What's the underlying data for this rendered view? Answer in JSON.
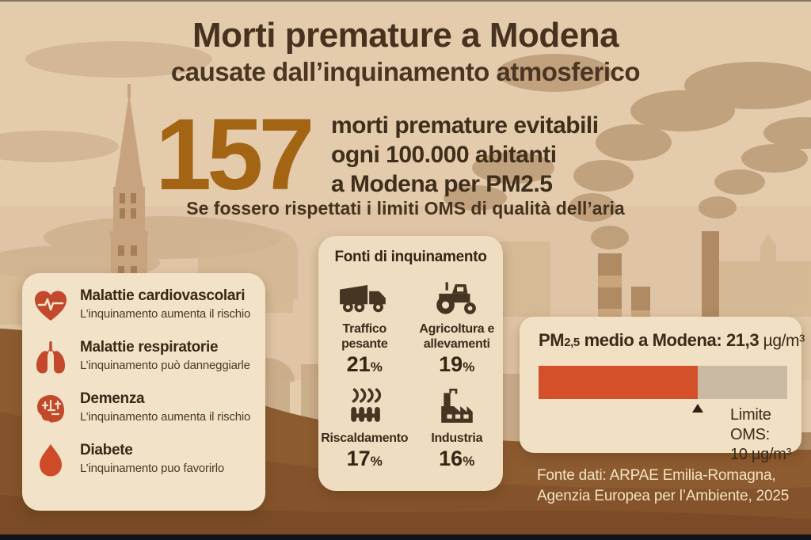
{
  "header": {
    "title_line1": "Morti premature a Modena",
    "title_line2": "causate dall’inquinamento atmosferico"
  },
  "stat": {
    "number": "157",
    "line1": "morti premature evitabili",
    "line2": "ogni 100.000 abitanti",
    "line3": "a Modena per PM2.5",
    "note": "Se fossero rispettati i limiti OMS di qualità dell’aria"
  },
  "diseases": {
    "items": [
      {
        "icon": "heart-ekg-icon",
        "name": "Malattie cardiovascolari",
        "desc": "L’inquinamento aumenta il rischio"
      },
      {
        "icon": "lungs-icon",
        "name": "Malattie respiratorie",
        "desc": "L’inquinamento può danneggiarle"
      },
      {
        "icon": "brain-icon",
        "name": "Demenza",
        "desc": "L’inquinamento aumenta il rischio"
      },
      {
        "icon": "blood-drop-icon",
        "name": "Diabete",
        "desc": "L’inquinamento puo favorirlo"
      }
    ]
  },
  "sources": {
    "title": "Fonti di inquinamento",
    "percent_sign": "%",
    "items": [
      {
        "icon": "truck-icon",
        "label": "Traffico pesante",
        "percent": "21"
      },
      {
        "icon": "tractor-icon",
        "label": "Agricoltura e allevamenti",
        "percent": "19"
      },
      {
        "icon": "heating-icon",
        "label": "Riscaldamento",
        "percent": "17"
      },
      {
        "icon": "factory-icon",
        "label": "Industria",
        "percent": "16"
      }
    ]
  },
  "pm_panel": {
    "label_pm": "PM",
    "label_sub": "2,5",
    "label_mid": " medio a Modena: ",
    "value": "21,3",
    "unit": " µg/m³",
    "bar_fill_percent": 64,
    "limit_line1": "Limite OMS:",
    "limit_line2": "10 µg/m³"
  },
  "footer": {
    "line1": "Fonte dati: ARPAE Emilia-Romagna,",
    "line2": "Agenzia Europea per l’Ambiente, 2025"
  },
  "colors": {
    "accent_number": "#a36413",
    "disease_icon_red": "#c2492c",
    "dark_icon_brown": "#473524",
    "bar_fill": "#d4502a",
    "bar_track": "#c8baa3",
    "ground_brown": "#8d5b30",
    "card_cream": "#f2e2c7"
  }
}
